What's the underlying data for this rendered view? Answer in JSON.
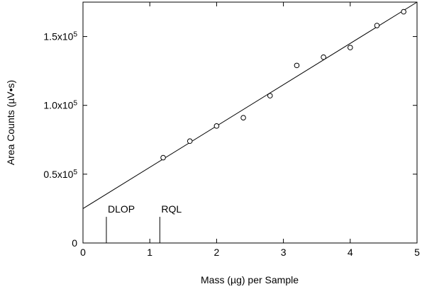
{
  "chart_data": {
    "type": "scatter",
    "xlabel": "Mass (µg) per Sample",
    "ylabel": "Area Counts (µV•s)",
    "xlim": [
      0,
      5
    ],
    "ylim": [
      0,
      175000
    ],
    "x_ticks": [
      {
        "value": 0,
        "label": "0"
      },
      {
        "value": 1,
        "label": "1"
      },
      {
        "value": 2,
        "label": "2"
      },
      {
        "value": 3,
        "label": "3"
      },
      {
        "value": 4,
        "label": "4"
      },
      {
        "value": 5,
        "label": "5"
      }
    ],
    "y_ticks": [
      {
        "value": 0,
        "base": "0",
        "exp": ""
      },
      {
        "value": 50000,
        "base": "0.5x10",
        "exp": "5"
      },
      {
        "value": 100000,
        "base": "1.0x10",
        "exp": "5"
      },
      {
        "value": 150000,
        "base": "1.5x10",
        "exp": "5"
      }
    ],
    "grid": false,
    "series": [
      {
        "marker": "open-circle",
        "x": [
          1.2,
          1.6,
          2.0,
          2.4,
          2.8,
          3.2,
          3.6,
          4.0,
          4.4,
          4.8
        ],
        "y": [
          62000,
          74000,
          85000,
          91000,
          107000,
          129000,
          135000,
          142000,
          158000,
          168000
        ]
      }
    ],
    "fit_line": {
      "x": [
        0,
        5
      ],
      "y": [
        25000,
        175000
      ]
    },
    "annotations": [
      {
        "label": "DLOP",
        "x": 0.35,
        "y_top": 19000
      },
      {
        "label": "RQL",
        "x": 1.15,
        "y_top": 19000
      }
    ]
  }
}
